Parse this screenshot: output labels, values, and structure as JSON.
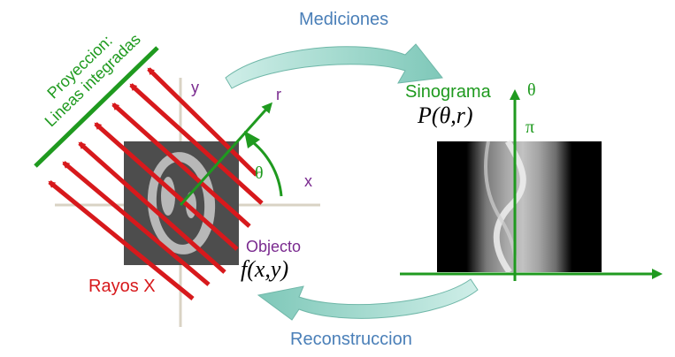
{
  "labels": {
    "mediciones": "Mediciones",
    "reconstruccion": "Reconstruccion",
    "sinograma": "Sinograma",
    "sinogram_func": "P(θ,r)",
    "proyeccion_line1": "Proyeccion:",
    "proyeccion_line2": "Lineas integradas",
    "rayos_x": "Rayos X",
    "objecto": "Objecto",
    "object_func": "f(x,y)",
    "axis_x": "x",
    "axis_y": "y",
    "axis_r": "r",
    "angle_theta": "θ",
    "sino_theta": "θ",
    "sino_pi": "π"
  },
  "colors": {
    "green": "#1f9a1f",
    "red": "#d7191c",
    "blue_text": "#4a7fb8",
    "purple": "#7a2a8f",
    "arrow_fill": "#a9dcd2",
    "axis_gray": "#d9d3c4",
    "phantom_bg": "#4d4d4d",
    "phantom_ring": "#b8b8b8"
  }
}
